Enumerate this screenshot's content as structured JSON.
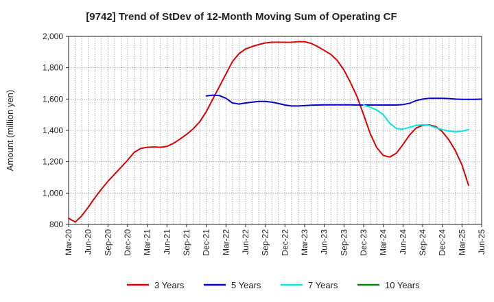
{
  "chart_data": {
    "type": "line",
    "title": "[9742]  Trend of StDev of 12-Month Moving Sum of Operating CF",
    "xlabel": "",
    "ylabel": "Amount (million yen)",
    "ylim": [
      800,
      2000
    ],
    "y_ticks": [
      800,
      1000,
      1200,
      1400,
      1600,
      1800,
      2000
    ],
    "y_tick_labels": [
      "800",
      "1,000",
      "1,200",
      "1,400",
      "1,600",
      "1,800",
      "2,000"
    ],
    "x_tick_labels": [
      "Mar-20",
      "Jun-20",
      "Sep-20",
      "Dec-20",
      "Mar-21",
      "Jun-21",
      "Sep-21",
      "Dec-21",
      "Mar-22",
      "Jun-22",
      "Sep-22",
      "Dec-22",
      "Mar-23",
      "Jun-23",
      "Sep-23",
      "Dec-23",
      "Mar-24",
      "Jun-24",
      "Sep-24",
      "Dec-24",
      "Mar-25",
      "Jun-25"
    ],
    "x_start": "Mar-20",
    "x_span_months": 63,
    "grid": true,
    "legend_position": "bottom",
    "series": [
      {
        "name": "3 Years",
        "color": "#dd0000",
        "start_month_index": 0,
        "values": [
          840,
          815,
          855,
          910,
          970,
          1025,
          1075,
          1120,
          1165,
          1210,
          1260,
          1285,
          1292,
          1295,
          1292,
          1298,
          1318,
          1345,
          1375,
          1410,
          1455,
          1520,
          1600,
          1680,
          1760,
          1840,
          1890,
          1920,
          1935,
          1948,
          1958,
          1963,
          1963,
          1962,
          1963,
          1966,
          1966,
          1955,
          1935,
          1910,
          1885,
          1845,
          1785,
          1705,
          1615,
          1500,
          1380,
          1290,
          1240,
          1230,
          1255,
          1310,
          1370,
          1415,
          1432,
          1435,
          1425,
          1392,
          1340,
          1270,
          1180,
          1050
        ]
      },
      {
        "name": "5 Years",
        "color": "#0000cc",
        "start_month_index": 21,
        "values": [
          1620,
          1625,
          1622,
          1605,
          1575,
          1568,
          1575,
          1580,
          1585,
          1585,
          1580,
          1572,
          1562,
          1556,
          1556,
          1558,
          1561,
          1562,
          1563,
          1563,
          1563,
          1563,
          1563,
          1562,
          1562,
          1562,
          1562,
          1562,
          1562,
          1562,
          1565,
          1573,
          1590,
          1600,
          1605,
          1605,
          1605,
          1603,
          1600,
          1598,
          1598,
          1598,
          1600
        ]
      },
      {
        "name": "7 Years",
        "color": "#00e5e5",
        "start_month_index": 45,
        "values": [
          1562,
          1548,
          1530,
          1500,
          1445,
          1412,
          1408,
          1420,
          1432,
          1436,
          1432,
          1418,
          1405,
          1396,
          1392,
          1395,
          1405
        ]
      },
      {
        "name": "10 Years",
        "color": "#008800",
        "start_month_index": 0,
        "values": []
      }
    ]
  }
}
